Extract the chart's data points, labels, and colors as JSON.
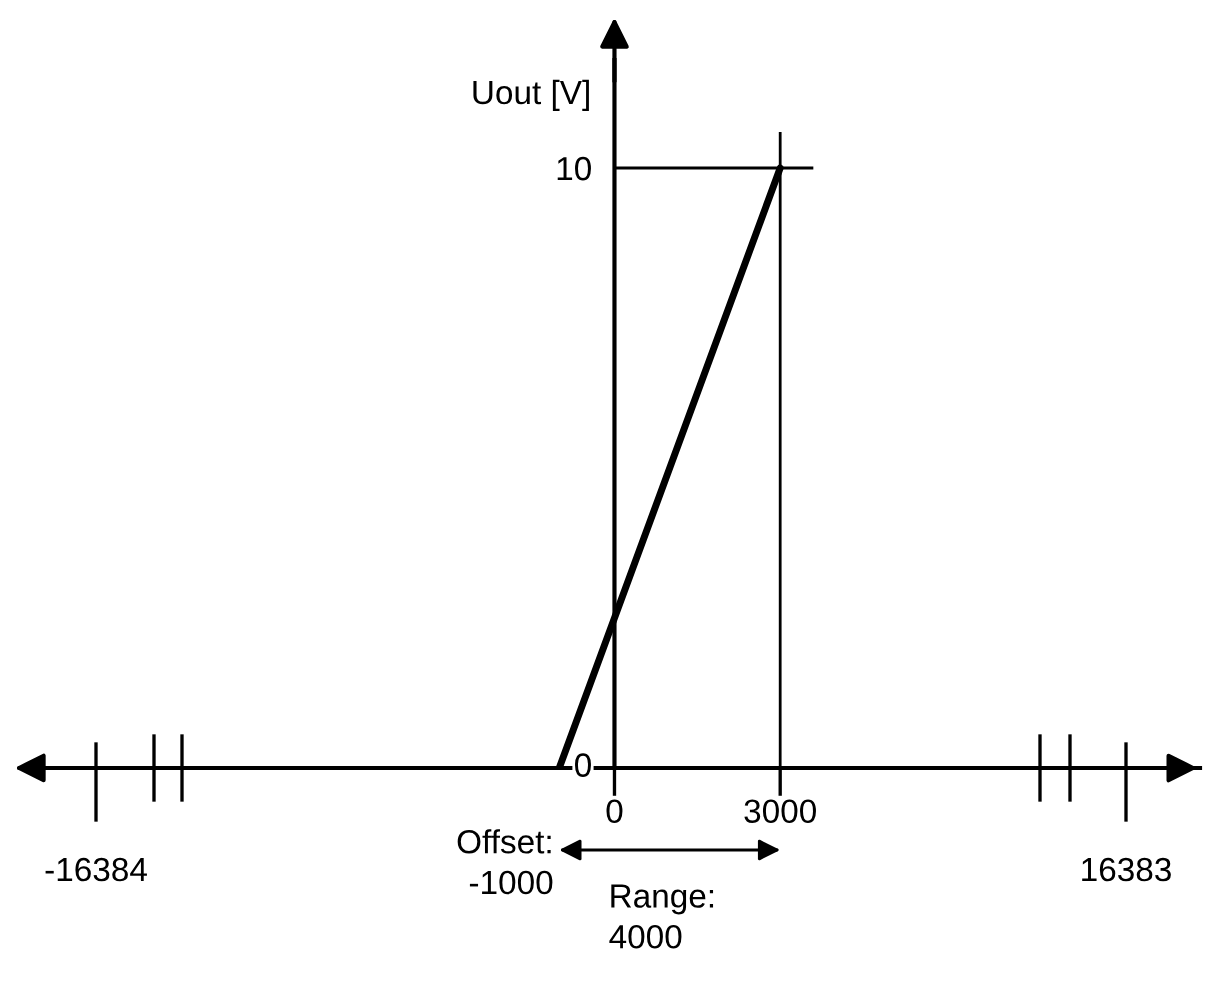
{
  "chart_data": {
    "type": "line",
    "ylabel": "Uout [V]",
    "xlim": [
      -10400,
      10600
    ],
    "ylim": [
      0,
      11.8
    ],
    "xticks": [
      0,
      3000
    ],
    "yticks": [
      0,
      10
    ],
    "marker": "none",
    "line_style": "solid",
    "series": [
      {
        "color": "#000000",
        "x": [
          -1000,
          3000
        ],
        "values": [
          0,
          10
        ]
      }
    ],
    "ref_lines": [
      {
        "axis": "x",
        "value": 3000,
        "color": "#000000"
      },
      {
        "axis": "y",
        "value": 10,
        "color": "#000000"
      }
    ],
    "annotations": [
      {
        "text": "Offset:\n-1000",
        "x": -1000,
        "y": 0
      },
      "Range:\n4000",
      "-16384",
      "16383"
    ]
  }
}
